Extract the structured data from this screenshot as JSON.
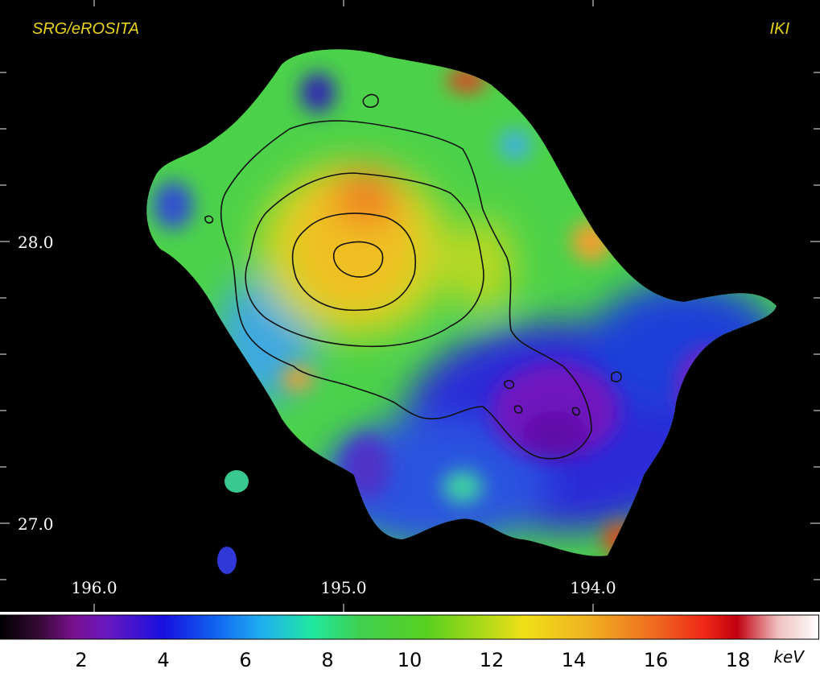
{
  "labels": {
    "instrument": "SRG/eROSITA",
    "institute": "IKI",
    "unit": "keV"
  },
  "axes": {
    "x_ticks": [
      "196.0",
      "195.0",
      "194.0"
    ],
    "y_ticks": [
      "28.0",
      "27.0"
    ]
  },
  "colorbar": {
    "ticks": [
      "2",
      "4",
      "6",
      "8",
      "10",
      "12",
      "14",
      "16",
      "18"
    ]
  },
  "colors": {
    "text_accent": "#e6d21a",
    "frame_bg": "#000000"
  }
}
